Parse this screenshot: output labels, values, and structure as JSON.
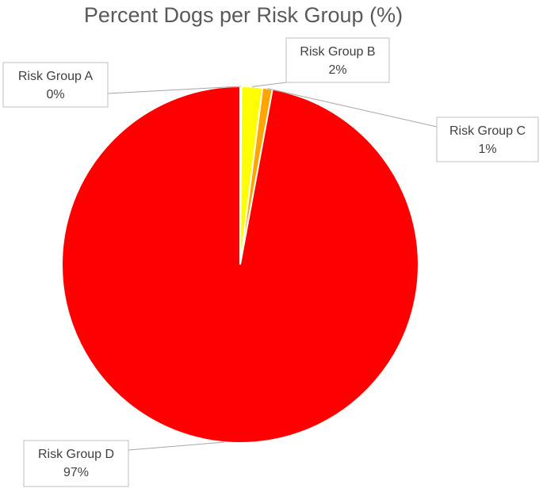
{
  "chart_data": {
    "type": "pie",
    "title": "Percent Dogs per Risk Group (%)",
    "slices": [
      {
        "label": "Risk Group A",
        "value": 0.1,
        "display": "0%",
        "color": "#ffffff"
      },
      {
        "label": "Risk Group B",
        "value": 1.9,
        "display": "2%",
        "color": "#ffff00"
      },
      {
        "label": "Risk Group C",
        "value": 0.9,
        "display": "1%",
        "color": "#ffa500"
      },
      {
        "label": "Risk Group D",
        "value": 97.1,
        "display": "97%",
        "color": "#ff0000"
      }
    ],
    "data_labels": "callouts-with-leader-lines",
    "legend": "none"
  }
}
